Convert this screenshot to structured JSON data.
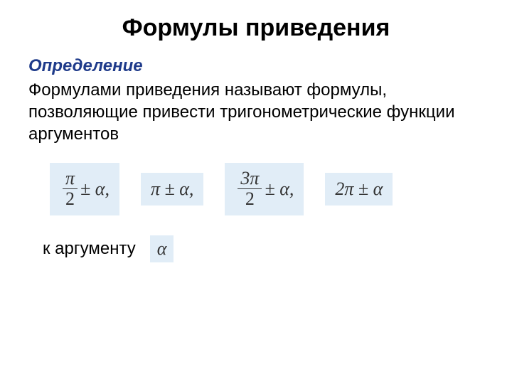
{
  "title": "Формулы приведения",
  "subtitle": "Определение",
  "body": "Формулами приведения называют формулы, позволяющие привести тригонометрические функции аргументов",
  "formulas": {
    "f1_num": "π",
    "f1_den": "2",
    "f1_tail": " ± α,",
    "f2": "π ± α,",
    "f3_num": "3π",
    "f3_den": "2",
    "f3_tail": " ± α,",
    "f4": "2π ± α"
  },
  "to_arg_label": "к аргументу",
  "alpha": "α",
  "colors": {
    "box_bg": "#e1edf7",
    "subtitle_color": "#1e3a8a",
    "text_color": "#000000",
    "formula_color": "#333333",
    "background": "#ffffff"
  },
  "typography": {
    "title_fontsize": 34,
    "subtitle_fontsize": 24,
    "body_fontsize": 24,
    "formula_fontsize": 26
  }
}
